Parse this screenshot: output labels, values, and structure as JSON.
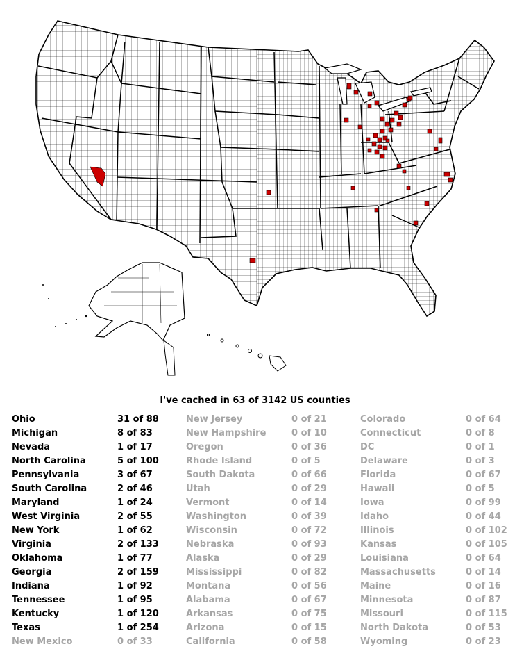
{
  "colors": {
    "cached_fill": "#cc0000",
    "uncached_text": "#a6a6a6",
    "cached_text": "#000000"
  },
  "summary": "I've cached in 63 of 3142 US counties",
  "columns": [
    [
      {
        "state": "Ohio",
        "count": "31 of 88",
        "cached": true
      },
      {
        "state": "Michigan",
        "count": "8 of 83",
        "cached": true
      },
      {
        "state": "Nevada",
        "count": "1 of 17",
        "cached": true
      },
      {
        "state": "North Carolina",
        "count": "5 of 100",
        "cached": true
      },
      {
        "state": "Pennsylvania",
        "count": "3 of 67",
        "cached": true
      },
      {
        "state": "South Carolina",
        "count": "2 of 46",
        "cached": true
      },
      {
        "state": "Maryland",
        "count": "1 of 24",
        "cached": true
      },
      {
        "state": "West Virginia",
        "count": "2 of 55",
        "cached": true
      },
      {
        "state": "New York",
        "count": "1 of 62",
        "cached": true
      },
      {
        "state": "Virginia",
        "count": "2 of 133",
        "cached": true
      },
      {
        "state": "Oklahoma",
        "count": "1 of 77",
        "cached": true
      },
      {
        "state": "Georgia",
        "count": "2 of 159",
        "cached": true
      },
      {
        "state": "Indiana",
        "count": "1 of 92",
        "cached": true
      },
      {
        "state": "Tennessee",
        "count": "1 of 95",
        "cached": true
      },
      {
        "state": "Kentucky",
        "count": "1 of 120",
        "cached": true
      },
      {
        "state": "Texas",
        "count": "1 of 254",
        "cached": true
      },
      {
        "state": "New Mexico",
        "count": "0 of 33",
        "cached": false
      }
    ],
    [
      {
        "state": "New Jersey",
        "count": "0 of 21",
        "cached": false
      },
      {
        "state": "New Hampshire",
        "count": "0 of 10",
        "cached": false
      },
      {
        "state": "Oregon",
        "count": "0 of 36",
        "cached": false
      },
      {
        "state": "Rhode Island",
        "count": "0 of 5",
        "cached": false
      },
      {
        "state": "South Dakota",
        "count": "0 of 66",
        "cached": false
      },
      {
        "state": "Utah",
        "count": "0 of 29",
        "cached": false
      },
      {
        "state": "Vermont",
        "count": "0 of 14",
        "cached": false
      },
      {
        "state": "Washington",
        "count": "0 of 39",
        "cached": false
      },
      {
        "state": "Wisconsin",
        "count": "0 of 72",
        "cached": false
      },
      {
        "state": "Nebraska",
        "count": "0 of 93",
        "cached": false
      },
      {
        "state": "Alaska",
        "count": "0 of 29",
        "cached": false
      },
      {
        "state": "Mississippi",
        "count": "0 of 82",
        "cached": false
      },
      {
        "state": "Montana",
        "count": "0 of 56",
        "cached": false
      },
      {
        "state": "Alabama",
        "count": "0 of 67",
        "cached": false
      },
      {
        "state": "Arkansas",
        "count": "0 of 75",
        "cached": false
      },
      {
        "state": "Arizona",
        "count": "0 of 15",
        "cached": false
      },
      {
        "state": "California",
        "count": "0 of 58",
        "cached": false
      }
    ],
    [
      {
        "state": "Colorado",
        "count": "0 of 64",
        "cached": false
      },
      {
        "state": "Connecticut",
        "count": "0 of 8",
        "cached": false
      },
      {
        "state": "DC",
        "count": "0 of 1",
        "cached": false
      },
      {
        "state": "Delaware",
        "count": "0 of 3",
        "cached": false
      },
      {
        "state": "Florida",
        "count": "0 of 67",
        "cached": false
      },
      {
        "state": "Hawaii",
        "count": "0 of 5",
        "cached": false
      },
      {
        "state": "Iowa",
        "count": "0 of 99",
        "cached": false
      },
      {
        "state": "Idaho",
        "count": "0 of 44",
        "cached": false
      },
      {
        "state": "Illinois",
        "count": "0 of 102",
        "cached": false
      },
      {
        "state": "Kansas",
        "count": "0 of 105",
        "cached": false
      },
      {
        "state": "Louisiana",
        "count": "0 of 64",
        "cached": false
      },
      {
        "state": "Massachusetts",
        "count": "0 of 14",
        "cached": false
      },
      {
        "state": "Maine",
        "count": "0 of 16",
        "cached": false
      },
      {
        "state": "Minnesota",
        "count": "0 of 87",
        "cached": false
      },
      {
        "state": "Missouri",
        "count": "0 of 115",
        "cached": false
      },
      {
        "state": "North Dakota",
        "count": "0 of 53",
        "cached": false
      },
      {
        "state": "Wyoming",
        "count": "0 of 23",
        "cached": false
      }
    ]
  ]
}
